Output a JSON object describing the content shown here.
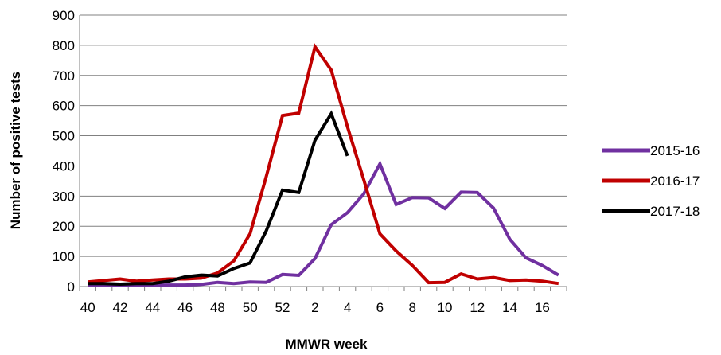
{
  "chart_data": {
    "type": "line",
    "xlabel": "MMWR week",
    "ylabel": "Number of positive tests",
    "ylim": [
      0,
      900
    ],
    "yticks": [
      0,
      100,
      200,
      300,
      400,
      500,
      600,
      700,
      800,
      900
    ],
    "grid": "horizontal",
    "legend_position": "right",
    "x": [
      "40",
      "41",
      "42",
      "43",
      "44",
      "45",
      "46",
      "47",
      "48",
      "49",
      "50",
      "51",
      "52",
      "1",
      "2",
      "3",
      "4",
      "5",
      "6",
      "7",
      "8",
      "9",
      "10",
      "11",
      "12",
      "13",
      "14",
      "15",
      "16",
      "17"
    ],
    "xtick_labels": [
      "40",
      "42",
      "44",
      "46",
      "48",
      "50",
      "52",
      "2",
      "4",
      "6",
      "8",
      "10",
      "12",
      "14",
      "16"
    ],
    "series": [
      {
        "name": "2015-16",
        "color": "#7030A0",
        "values": [
          5,
          5,
          5,
          5,
          5,
          5,
          5,
          7,
          14,
          10,
          15,
          14,
          40,
          37,
          93,
          205,
          245,
          307,
          407,
          272,
          295,
          294,
          259,
          313,
          312,
          260,
          157,
          95,
          70,
          38
        ]
      },
      {
        "name": "2016-17",
        "color": "#C00000",
        "values": [
          15,
          20,
          25,
          18,
          22,
          25,
          25,
          28,
          45,
          85,
          175,
          365,
          567,
          575,
          795,
          718,
          530,
          355,
          175,
          118,
          70,
          13,
          14,
          42,
          25,
          30,
          20,
          22,
          18,
          10
        ]
      },
      {
        "name": "2017-18",
        "color": "#000000",
        "values": [
          10,
          10,
          8,
          10,
          10,
          18,
          32,
          38,
          35,
          60,
          78,
          185,
          320,
          312,
          485,
          573,
          433,
          null,
          null,
          null,
          null,
          null,
          null,
          null,
          null,
          null,
          null,
          null,
          null,
          null
        ]
      }
    ]
  }
}
